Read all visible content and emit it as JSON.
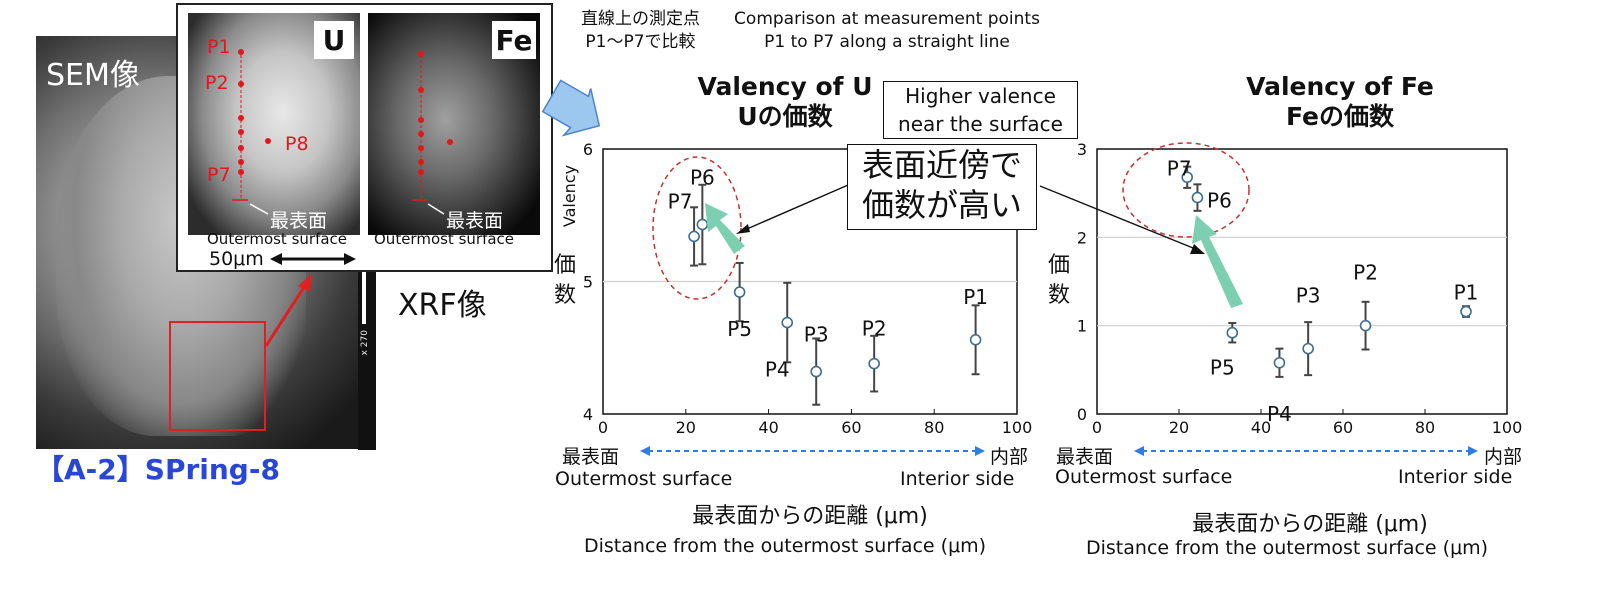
{
  "sem": {
    "label": "SEM像",
    "scale_text": "x 270"
  },
  "facility": "【A-2】SPring-8",
  "xrf": {
    "label": "XRF像",
    "u_badge": "U",
    "fe_badge": "Fe",
    "u_points": [
      "P1",
      "P2",
      "P8",
      "P7"
    ],
    "surface_jp": "最表面",
    "surface_en": "Outermost surface",
    "scale": "50μm"
  },
  "notes": {
    "jp_line1": "直線上の測定点",
    "jp_line2": "P1〜P7で比較",
    "en_line1": "Comparison at measurement points",
    "en_line2": "P1 to P7 along a straight line"
  },
  "callouts": {
    "higher_line1": "Higher valence",
    "higher_line2": "near the surface",
    "jp_line1": "表面近傍で",
    "jp_line2": "価数が高い"
  },
  "chart_data": [
    {
      "type": "scatter",
      "title": "Valency of U",
      "subtitle": "Uの価数",
      "ylabel": "Valency",
      "ylabel_jp": "価数",
      "xlabel": "Distance from the outermost surface (μm)",
      "xlabel_jp": "最表面からの距離 (μm)",
      "xlim": [
        0,
        100
      ],
      "ylim": [
        4,
        6
      ],
      "xticks": [
        "0",
        "20",
        "40",
        "60",
        "80",
        "100"
      ],
      "yticks": [
        "4",
        "5",
        "6"
      ],
      "grid": "horizontal",
      "left_side_jp": "最表面",
      "left_side_en": "Outermost surface",
      "right_side_jp": "内部",
      "right_side_en": "Interior side",
      "points": [
        {
          "label": "P7",
          "x": 22,
          "y": 5.34,
          "err": 0.22
        },
        {
          "label": "P6",
          "x": 24,
          "y": 5.43,
          "err": 0.3
        },
        {
          "label": "P5",
          "x": 33,
          "y": 4.92,
          "err": 0.22
        },
        {
          "label": "P4",
          "x": 44.5,
          "y": 4.69,
          "err": 0.3
        },
        {
          "label": "P3",
          "x": 51.5,
          "y": 4.32,
          "err": 0.25
        },
        {
          "label": "P2",
          "x": 65.5,
          "y": 4.38,
          "err": 0.21
        },
        {
          "label": "P1",
          "x": 90,
          "y": 4.56,
          "err": 0.26
        }
      ]
    },
    {
      "type": "scatter",
      "title": "Valency of Fe",
      "subtitle": "Feの価数",
      "ylabel_jp": "価数",
      "xlabel": "Distance from the outermost surface (μm)",
      "xlabel_jp": "最表面からの距離 (μm)",
      "xlim": [
        0,
        100
      ],
      "ylim": [
        0,
        3
      ],
      "xticks": [
        "0",
        "20",
        "40",
        "60",
        "80",
        "100"
      ],
      "yticks": [
        "0",
        "1",
        "2",
        "3"
      ],
      "grid": "horizontal",
      "left_side_jp": "最表面",
      "left_side_en": "Outermost surface",
      "right_side_jp": "内部",
      "right_side_en": "Interior side",
      "points": [
        {
          "label": "P7",
          "x": 22,
          "y": 2.68,
          "err": 0.12
        },
        {
          "label": "P6",
          "x": 24.5,
          "y": 2.45,
          "err": 0.15
        },
        {
          "label": "P5",
          "x": 33,
          "y": 0.92,
          "err": 0.11
        },
        {
          "label": "P4",
          "x": 44.5,
          "y": 0.58,
          "err": 0.16
        },
        {
          "label": "P3",
          "x": 51.5,
          "y": 0.74,
          "err": 0.3
        },
        {
          "label": "P2",
          "x": 65.5,
          "y": 1.0,
          "err": 0.27
        },
        {
          "label": "P1",
          "x": 90,
          "y": 1.16,
          "err": 0.06
        }
      ]
    }
  ]
}
